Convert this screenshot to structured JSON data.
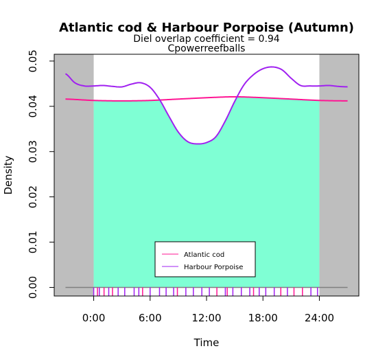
{
  "chart_data": {
    "type": "line",
    "title": "Atlantic cod & Harbour Porpoise (Autumn)",
    "subtitle_prefix": "Diel overlap coefficient = ",
    "overlap_value": "0.94",
    "subtitle2": "Cpowerreefballs",
    "xlabel": "Time",
    "ylabel": "Density",
    "xlim": [
      -4.2,
      28.2
    ],
    "ylim": [
      -0.0019,
      0.0515
    ],
    "xticks": [
      {
        "value": 0,
        "label": "0:00"
      },
      {
        "value": 6,
        "label": "6:00"
      },
      {
        "value": 12,
        "label": "12:00"
      },
      {
        "value": 18,
        "label": "18:00"
      },
      {
        "value": 24,
        "label": "24:00"
      }
    ],
    "yticks": [
      {
        "value": 0.0,
        "label": "0.00"
      },
      {
        "value": 0.01,
        "label": "0.01"
      },
      {
        "value": 0.02,
        "label": "0.02"
      },
      {
        "value": 0.03,
        "label": "0.03"
      },
      {
        "value": 0.04,
        "label": "0.04"
      },
      {
        "value": 0.05,
        "label": "0.05"
      }
    ],
    "grey_band_color": "#bebebe",
    "overlap_fill_color": "#7fffd4",
    "baseline_color": "#808080",
    "series": [
      {
        "name": "Atlantic cod",
        "color": "#ff1493",
        "x": [
          -3,
          0,
          3,
          6,
          9,
          12,
          15,
          18,
          21,
          24,
          27
        ],
        "y": [
          0.0416,
          0.0413,
          0.0412,
          0.0413,
          0.0416,
          0.0419,
          0.0421,
          0.0419,
          0.0416,
          0.0413,
          0.0412
        ],
        "rug": [
          0.4,
          1.1,
          2.0,
          5.2,
          8.9,
          13.1,
          14.2,
          17.0,
          19.9,
          21.3,
          22.2
        ],
        "rug_color": "#ff1493"
      },
      {
        "name": "Harbour Porpoise",
        "color": "#a020f0",
        "x": [
          -3,
          -2,
          -1,
          0,
          1,
          2,
          3,
          4,
          5,
          6,
          7,
          8,
          9,
          10,
          11,
          12,
          13,
          14,
          15,
          16,
          17,
          18,
          19,
          20,
          21,
          22,
          23,
          24,
          25,
          26,
          27
        ],
        "y": [
          0.0472,
          0.0452,
          0.0445,
          0.0445,
          0.0446,
          0.0444,
          0.0443,
          0.0449,
          0.0452,
          0.0442,
          0.0415,
          0.0378,
          0.0343,
          0.0322,
          0.0317,
          0.032,
          0.0333,
          0.0368,
          0.0411,
          0.0448,
          0.047,
          0.0483,
          0.0487,
          0.0481,
          0.0462,
          0.0446,
          0.0445,
          0.0445,
          0.0446,
          0.0444,
          0.0443
        ],
        "rug": [
          0.0,
          0.6,
          1.6,
          2.6,
          3.3,
          4.3,
          4.8,
          6.0,
          7.0,
          7.7,
          8.5,
          9.8,
          10.6,
          11.5,
          12.3,
          14.0,
          14.8,
          15.7,
          16.6,
          17.6,
          18.3,
          19.2,
          20.6,
          23.1,
          23.8
        ],
        "rug_color": "#a020f0"
      }
    ],
    "legend": "bottom-center"
  }
}
